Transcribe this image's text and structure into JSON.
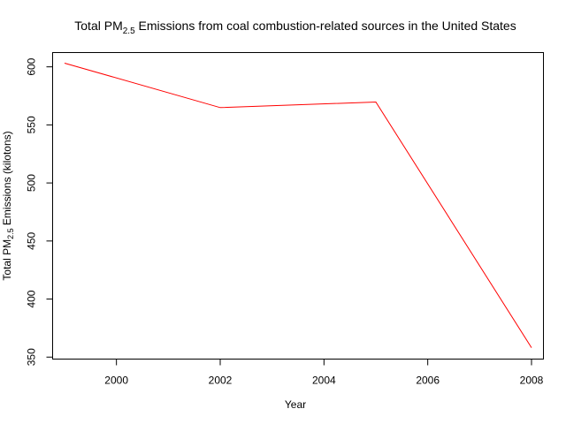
{
  "chart_data": {
    "type": "line",
    "title": {
      "prefix": "Total PM",
      "subscript": "2.5",
      "suffix": " Emissions from coal combustion-related sources in the United States"
    },
    "xlabel": "Year",
    "ylabel": {
      "prefix": "Total PM",
      "subscript": "2.5",
      "suffix": " Emissions (kilotons)"
    },
    "x": [
      1999,
      2002,
      2005,
      2008
    ],
    "series": [
      {
        "values": [
          603.2,
          564.9,
          569.7,
          358.1
        ],
        "color": "#ff0000"
      }
    ],
    "xlim": [
      1998.77,
      2008.23
    ],
    "ylim": [
      348.3,
      612.3
    ],
    "x_ticks": [
      2000,
      2002,
      2004,
      2006,
      2008
    ],
    "y_ticks": [
      350,
      400,
      450,
      500,
      550,
      600
    ],
    "grid": false,
    "legend": "none"
  }
}
